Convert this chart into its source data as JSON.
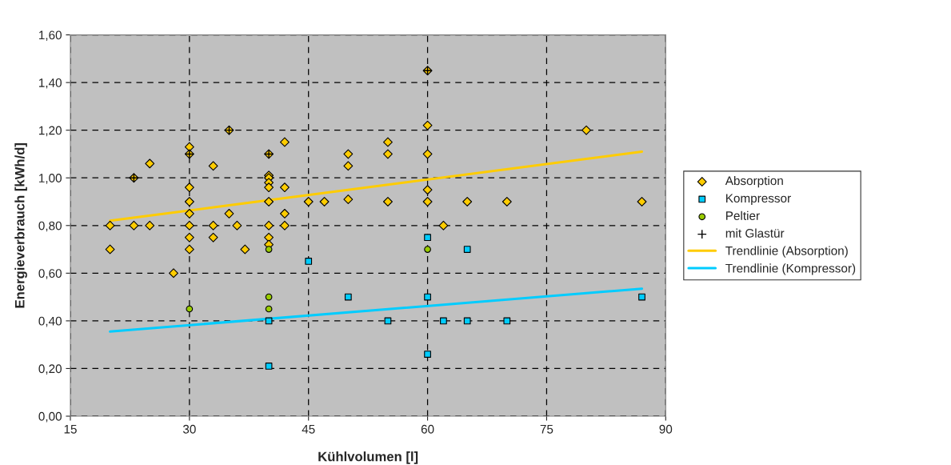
{
  "chart_data": {
    "type": "scatter",
    "xlabel": "Kühlvolumen [l]",
    "ylabel": "Energieverbrauch [kWh/d]",
    "xlim": [
      15,
      90
    ],
    "xticks": [
      15,
      30,
      45,
      60,
      75,
      90
    ],
    "ylim": [
      0,
      1.6
    ],
    "yticks": [
      {
        "value": 0,
        "label": "0,00"
      },
      {
        "value": 0.2,
        "label": "0,20"
      },
      {
        "value": 0.4,
        "label": "0,40"
      },
      {
        "value": 0.6,
        "label": "0,60"
      },
      {
        "value": 0.8,
        "label": "0,80"
      },
      {
        "value": 1.0,
        "label": "1,00"
      },
      {
        "value": 1.2,
        "label": "1,20"
      },
      {
        "value": 1.4,
        "label": "1,40"
      },
      {
        "value": 1.6,
        "label": "1,60"
      }
    ],
    "grid": true,
    "legend": "right",
    "series": [
      {
        "name": "Absorption",
        "marker": "diamond",
        "color": "#ffcc00",
        "x": [
          20,
          20,
          23,
          23,
          25,
          25,
          28,
          30,
          30,
          30,
          30,
          30,
          30,
          30,
          30,
          33,
          33,
          33,
          35,
          35,
          36,
          37,
          40,
          40,
          40,
          40,
          40,
          40,
          40,
          40,
          40,
          42,
          42,
          42,
          42,
          45,
          47,
          50,
          50,
          50,
          55,
          55,
          55,
          60,
          60,
          60,
          60,
          60,
          62,
          65,
          70,
          80,
          87
        ],
        "values": [
          0.8,
          0.7,
          1.0,
          0.8,
          1.06,
          0.8,
          0.6,
          1.13,
          1.1,
          0.96,
          0.9,
          0.85,
          0.8,
          0.75,
          0.7,
          1.05,
          0.8,
          0.75,
          1.2,
          0.85,
          0.8,
          0.7,
          1.1,
          1.01,
          1.0,
          0.98,
          0.96,
          0.9,
          0.8,
          0.75,
          0.72,
          1.15,
          0.96,
          0.85,
          0.8,
          0.9,
          0.9,
          1.1,
          1.05,
          0.91,
          1.15,
          1.1,
          0.9,
          1.45,
          1.22,
          1.1,
          0.95,
          0.9,
          0.8,
          0.9,
          0.9,
          1.2,
          0.9
        ]
      },
      {
        "name": "Kompressor",
        "marker": "square",
        "color": "#00ccff",
        "x": [
          40,
          40,
          45,
          50,
          55,
          60,
          60,
          60,
          62,
          65,
          65,
          70,
          87
        ],
        "values": [
          0.4,
          0.21,
          0.65,
          0.5,
          0.4,
          0.75,
          0.5,
          0.26,
          0.4,
          0.7,
          0.4,
          0.4,
          0.5
        ]
      },
      {
        "name": "Peltier",
        "marker": "circle",
        "color": "#99cc00",
        "x": [
          30,
          40,
          40,
          40,
          60
        ],
        "values": [
          0.45,
          0.7,
          0.5,
          0.45,
          0.7
        ]
      },
      {
        "name": "mit Glastür",
        "marker": "cross",
        "color": "#000000",
        "x": [
          23,
          30,
          35,
          40,
          60
        ],
        "values": [
          1.0,
          1.1,
          1.2,
          1.1,
          1.45
        ]
      },
      {
        "name": "Trendlinie (Absorption)",
        "type": "line",
        "marker": "none",
        "color": "#ffcc00",
        "x": [
          20,
          87
        ],
        "values": [
          0.82,
          1.11
        ]
      },
      {
        "name": "Trendlinie (Kompressor)",
        "type": "line",
        "marker": "none",
        "color": "#00ccff",
        "x": [
          20,
          87
        ],
        "values": [
          0.355,
          0.535
        ]
      }
    ]
  }
}
